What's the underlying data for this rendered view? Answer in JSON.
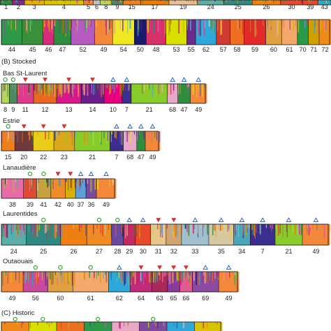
{
  "chart_data": {
    "type": "bar",
    "palette": {
      "1": "#2e8b3e",
      "2": "#7a2e8e",
      "3": "#e8b100",
      "4": "#d8c400",
      "5": "#f08030",
      "6": "#c0c0c0",
      "7": "#3c2e8e",
      "8": "#b8d45a",
      "9": "#4a8a5e",
      "10": "#e6007e",
      "11": "#e03a90",
      "12": "#e76a20",
      "13": "#d8188a",
      "14": "#6a1e8a",
      "15": "#ef7f1a",
      "16": "#d46010",
      "17": "#ef7a00",
      "19": "#e8c090",
      "20": "#6e3a3a",
      "21": "#88cc2a",
      "22": "#eacd1a",
      "23": "#d8a81a",
      "24": "#5ab0a8",
      "25": "#2e8a80",
      "26": "#ef7f10",
      "27": "#f18a22",
      "28": "#6a4aa0",
      "29": "#c22a62",
      "30": "#e64a2a",
      "31": "#e8c88a",
      "32": "#d0a470",
      "33": "#a0c0d0",
      "34": "#46a8b8",
      "35": "#d8c8a0",
      "36": "#7e4a9e",
      "37": "#5ba0d8",
      "38": "#e86aa8",
      "39": "#e04a30",
      "40": "#d8b000",
      "41": "#c8a040",
      "42": "#ee8a2a",
      "43": "#30a8c0",
      "44": "#2e9a48",
      "45": "#3a8f3a",
      "46": "#d82a7e",
      "47": "#2f8e3e",
      "48": "#d8306a",
      "49": "#f4883a",
      "50": "#1a1a6e",
      "51": "#ef5a96",
      "52": "#b45ac0",
      "53": "#d7e000",
      "54": "#f0e820",
      "55": "#6a2a8e",
      "56": "#c84a9e",
      "57": "#d03a30",
      "58": "#ef6f22",
      "59": "#e22a2a",
      "60": "#e0a040",
      "61": "#f4a86a",
      "62": "#2ea8d8",
      "63": "#a82a5a",
      "64": "#c02a7a",
      "65": "#8a3a9a",
      "66": "#e05a90",
      "67": "#9a9a9a",
      "68": "#e8a8c8",
      "69": "#8a4aa0",
      "70": "#2a9a48",
      "71": "#d0a000",
      "72": "#ef8a1a"
    },
    "panels": [
      {
        "section": "",
        "region": "",
        "segments": [
          {
            "label": "1",
            "w": 2.8,
            "mix": 0.2
          },
          {
            "label": "2",
            "w": 2.8,
            "mix": 0.2
          },
          {
            "label": "3",
            "w": 4.5,
            "mix": 0.2
          },
          {
            "label": "4",
            "w": 9,
            "mix": 0.2
          },
          {
            "label": "5",
            "w": 2.2,
            "mix": 0.2
          },
          {
            "label": "6",
            "w": 1.6,
            "mix": 0.2
          },
          {
            "label": "8",
            "w": 2.6,
            "mix": 0.2
          },
          {
            "label": "9",
            "w": 2.6,
            "mix": 0.2
          },
          {
            "label": "15",
            "w": 4,
            "mix": 0.2
          },
          {
            "label": "17",
            "w": 6.5,
            "mix": 0.2
          },
          {
            "label": "19",
            "w": 6.5,
            "mix": 0.2
          },
          {
            "label": "24",
            "w": 6,
            "mix": 0.2
          },
          {
            "label": "25",
            "w": 6.5,
            "mix": 0.2
          },
          {
            "label": "26",
            "w": 6.5,
            "mix": 0.2
          },
          {
            "label": "30",
            "w": 5,
            "mix": 0.2
          },
          {
            "label": "39",
            "w": 3.5,
            "mix": 0.2
          },
          {
            "label": "43",
            "w": 3,
            "mix": 0.2
          }
        ]
      },
      {
        "section": "",
        "region": "",
        "segments": [
          {
            "label": "44",
            "w": 4.2,
            "mix": 0.2
          },
          {
            "label": "45",
            "w": 4.2,
            "mix": 0.2
          },
          {
            "label": "46",
            "w": 2.2,
            "mix": 0.5
          },
          {
            "label": "47",
            "w": 3.5,
            "mix": 0.6
          },
          {
            "label": "52",
            "w": 4.8,
            "mix": 0.4
          },
          {
            "label": "49",
            "w": 3.6,
            "mix": 0.3
          },
          {
            "label": "54",
            "w": 4.4,
            "mix": 0.2
          },
          {
            "label": "50",
            "w": 2.4,
            "mix": 0.2
          },
          {
            "label": "48",
            "w": 4,
            "mix": 0.3
          },
          {
            "label": "53",
            "w": 4.2,
            "mix": 0.2
          },
          {
            "label": "55",
            "w": 1.8,
            "mix": 0.2
          },
          {
            "label": "62",
            "w": 4.2,
            "mix": 0.4
          },
          {
            "label": "57",
            "w": 2.8,
            "mix": 0.2
          },
          {
            "label": "58",
            "w": 2.8,
            "mix": 0.2
          },
          {
            "label": "59",
            "w": 4.4,
            "mix": 0.2
          },
          {
            "label": "60",
            "w": 3.2,
            "mix": 0.3
          },
          {
            "label": "61",
            "w": 3.2,
            "mix": 0.2
          },
          {
            "label": "70",
            "w": 2.2,
            "mix": 0.2
          },
          {
            "label": "71",
            "w": 2.2,
            "mix": 0.2
          },
          {
            "label": "72",
            "w": 2.4,
            "mix": 0.2
          }
        ]
      },
      {
        "section": "(B) Stocked",
        "region": "Bas St-Laurent",
        "segments": [
          {
            "label": "8",
            "w": 2.4,
            "mix": 0.3,
            "marker": "circle"
          },
          {
            "label": "9",
            "w": 2.4,
            "mix": 0.3,
            "marker": "circle"
          },
          {
            "label": "11",
            "w": 5,
            "mix": 0.5,
            "marker": "triangle-down"
          },
          {
            "label": "12",
            "w": 7,
            "mix": 0.7,
            "marker": "triangle-down"
          },
          {
            "label": "13",
            "w": 7.5,
            "mix": 0.7,
            "marker": "triangle-down"
          },
          {
            "label": "14",
            "w": 7,
            "mix": 0.7,
            "marker": "triangle-down"
          },
          {
            "label": "10",
            "w": 5.5,
            "mix": 0.5,
            "marker": "triangle-up"
          },
          {
            "label": "7",
            "w": 2.8,
            "mix": 0.3,
            "marker": "triangle-up"
          },
          {
            "label": "21",
            "w": 11,
            "mix": 0.2
          },
          {
            "label": "68",
            "w": 3.2,
            "mix": 0.3,
            "marker": "triangle-up"
          },
          {
            "label": "47",
            "w": 3.8,
            "mix": 0.3,
            "marker": "triangle-up"
          },
          {
            "label": "49",
            "w": 5,
            "mix": 0.2,
            "marker": "triangle-up"
          }
        ]
      },
      {
        "section": "",
        "region": "Estrie",
        "segments": [
          {
            "label": "15",
            "w": 2.2,
            "mix": 0.3,
            "marker": "circle"
          },
          {
            "label": "20",
            "w": 3,
            "mix": 0.3,
            "marker": "triangle-down"
          },
          {
            "label": "22",
            "w": 3.4,
            "mix": 0.2,
            "marker": "triangle-down"
          },
          {
            "label": "23",
            "w": 3.4,
            "mix": 0.2,
            "marker": "triangle-down"
          },
          {
            "label": "21",
            "w": 5.8,
            "mix": 0.2
          },
          {
            "label": "7",
            "w": 2.2,
            "mix": 0.3,
            "marker": "triangle-up"
          },
          {
            "label": "68",
            "w": 2.2,
            "mix": 0.3,
            "marker": "triangle-up"
          },
          {
            "label": "47",
            "w": 1.4,
            "mix": 0.3,
            "marker": "triangle-up"
          },
          {
            "label": "49",
            "w": 2.4,
            "mix": 0.2,
            "marker": "triangle-up"
          }
        ]
      },
      {
        "section": "",
        "region": "Lanaudière",
        "segments": [
          {
            "label": "38",
            "w": 3.4,
            "mix": 0.2
          },
          {
            "label": "39",
            "w": 2,
            "mix": 0.3,
            "marker": "circle"
          },
          {
            "label": "41",
            "w": 2.2,
            "mix": 0.3,
            "marker": "circle"
          },
          {
            "label": "42",
            "w": 2.2,
            "mix": 0.6,
            "marker": "triangle-down"
          },
          {
            "label": "40",
            "w": 1.6,
            "mix": 0.6,
            "marker": "triangle-down"
          },
          {
            "label": "37",
            "w": 1.6,
            "mix": 0.5,
            "marker": "triangle-up"
          },
          {
            "label": "36",
            "w": 1.6,
            "mix": 0.5,
            "marker": "triangle-up"
          },
          {
            "label": "49",
            "w": 3,
            "mix": 0.2,
            "marker": "triangle-up"
          }
        ]
      },
      {
        "section": "",
        "region": "Laurentides",
        "segments": [
          {
            "label": "24",
            "w": 4.2,
            "mix": 0.5
          },
          {
            "label": "25",
            "w": 5.8,
            "mix": 0.5,
            "marker": "circle"
          },
          {
            "label": "26",
            "w": 4.4,
            "mix": 0.2
          },
          {
            "label": "27",
            "w": 4.2,
            "mix": 0.2,
            "marker": "circle"
          },
          {
            "label": "28",
            "w": 2,
            "mix": 0.3,
            "marker": "circle"
          },
          {
            "label": "29",
            "w": 2,
            "mix": 0.3,
            "marker": "triangle-up"
          },
          {
            "label": "30",
            "w": 2.6,
            "mix": 0.3,
            "marker": "triangle-up"
          },
          {
            "label": "31",
            "w": 2.6,
            "mix": 0.3,
            "marker": "triangle-down"
          },
          {
            "label": "32",
            "w": 2.6,
            "mix": 0.3,
            "marker": "triangle-down"
          },
          {
            "label": "33",
            "w": 4.6,
            "mix": 0.4,
            "marker": "triangle-up"
          },
          {
            "label": "35",
            "w": 4.2,
            "mix": 0.4,
            "marker": "triangle-up"
          },
          {
            "label": "34",
            "w": 2.8,
            "mix": 0.4,
            "marker": "triangle-up"
          },
          {
            "label": "7",
            "w": 4.2,
            "mix": 0.3,
            "marker": "triangle-up"
          },
          {
            "label": "21",
            "w": 4.6,
            "mix": 0.3,
            "marker": "triangle-up"
          },
          {
            "label": "49",
            "w": 4.6,
            "mix": 0.2,
            "marker": "triangle-up"
          }
        ]
      },
      {
        "section": "",
        "region": "Outaouais",
        "segments": [
          {
            "label": "49",
            "w": 2.8,
            "mix": 0.3
          },
          {
            "label": "56",
            "w": 3.2,
            "mix": 0.5,
            "marker": "circle"
          },
          {
            "label": "60",
            "w": 3.2,
            "mix": 0.4,
            "marker": "circle"
          },
          {
            "label": "61",
            "w": 4.6,
            "mix": 0.3,
            "marker": "circle"
          },
          {
            "label": "62",
            "w": 2.8,
            "mix": 0.5,
            "marker": "triangle-up"
          },
          {
            "label": "64",
            "w": 2.8,
            "mix": 0.6,
            "marker": "triangle-down"
          },
          {
            "label": "63",
            "w": 2,
            "mix": 0.7,
            "marker": "triangle-down"
          },
          {
            "label": "65",
            "w": 1.6,
            "mix": 0.7,
            "marker": "triangle-down"
          },
          {
            "label": "66",
            "w": 1.6,
            "mix": 0.7,
            "marker": "triangle-down"
          },
          {
            "label": "69",
            "w": 3.4,
            "mix": 0.6,
            "marker": "triangle-up"
          },
          {
            "label": "49",
            "w": 2.6,
            "mix": 0.3,
            "marker": "triangle-up"
          }
        ]
      },
      {
        "section": "(C) Historic",
        "region": "",
        "segments": [
          {
            "label": "",
            "w": 2,
            "mix": 0.1,
            "color": "#ef8a1a",
            "marker": "circle"
          },
          {
            "label": "",
            "w": 2,
            "mix": 0.1,
            "color": "#d7e000",
            "marker": "circle"
          },
          {
            "label": "",
            "w": 2,
            "mix": 0.1,
            "color": "#ef6f22"
          },
          {
            "label": "",
            "w": 2,
            "mix": 0.1,
            "color": "#2e9a48",
            "marker": "circle"
          },
          {
            "label": "",
            "w": 2,
            "mix": 0.1,
            "color": "#e8a8c8"
          },
          {
            "label": "",
            "w": 2,
            "mix": 0.1,
            "color": "#7e4a9e",
            "marker": "circle"
          },
          {
            "label": "",
            "w": 2,
            "mix": 0.1,
            "color": "#2ea8d8"
          },
          {
            "label": "",
            "w": 2,
            "mix": 0.1,
            "color": "#d8c400"
          }
        ]
      }
    ]
  }
}
